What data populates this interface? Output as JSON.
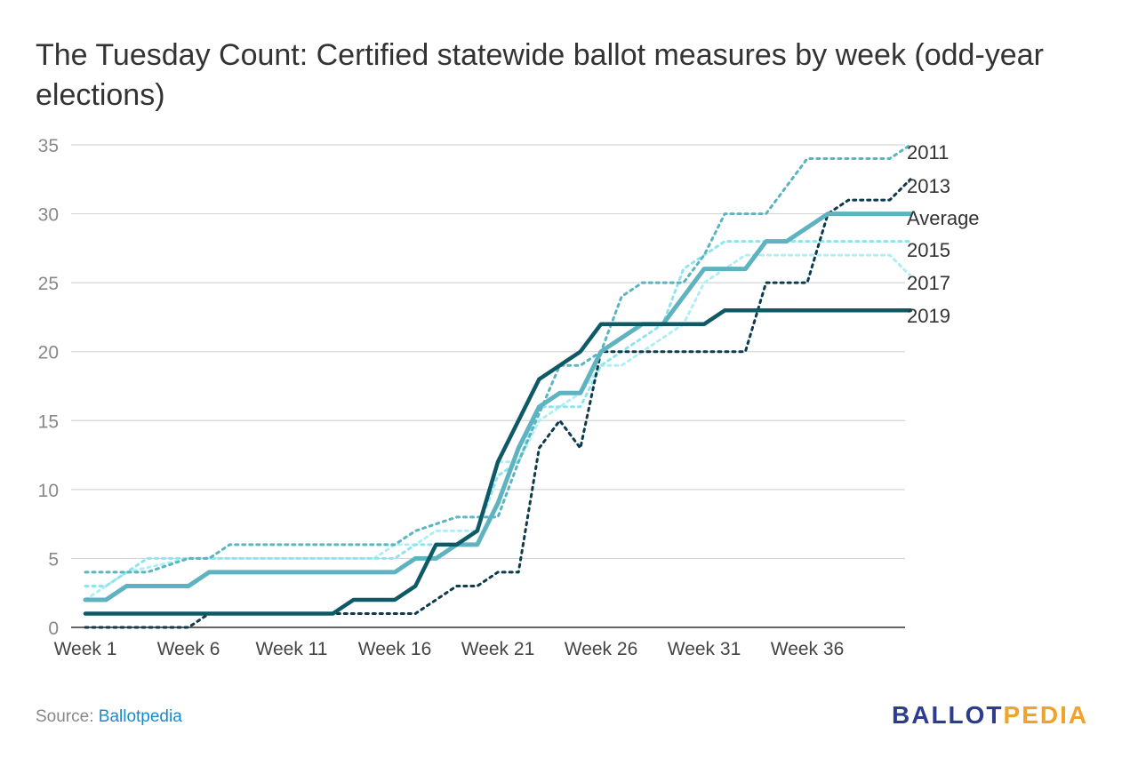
{
  "title": "The Tuesday Count: Certified statewide ballot measures by week (odd-year elections)",
  "source": {
    "label": "Source:",
    "link_text": "Ballotpedia"
  },
  "logo": {
    "part1": "BALLOT",
    "part2": "PEDIA",
    "color1": "#2d3c8c",
    "color2": "#f0a22a"
  },
  "chart_data": {
    "type": "line",
    "title": "The Tuesday Count: Certified statewide ballot measures by week (odd-year elections)",
    "xlabel": "",
    "ylabel": "",
    "ylim": [
      0,
      35
    ],
    "y_ticks": [
      0,
      5,
      10,
      15,
      20,
      25,
      30,
      35
    ],
    "x_tick_labels": [
      "Week 1",
      "Week 6",
      "Week 11",
      "Week 16",
      "Week 21",
      "Week 26",
      "Week 31",
      "Week 36"
    ],
    "x_tick_weeks": [
      1,
      6,
      11,
      16,
      21,
      26,
      31,
      36
    ],
    "x_range": [
      1,
      41
    ],
    "grid": true,
    "legend": "right, labels at line ends",
    "series": [
      {
        "name": "2011",
        "color": "#5bb5c0",
        "style": "dotted",
        "x": [
          1,
          4,
          6,
          7,
          8,
          12,
          16,
          17,
          19,
          21,
          22,
          24,
          25,
          26,
          27,
          28,
          29,
          30,
          31,
          32,
          33,
          34,
          35,
          36,
          37,
          38,
          39,
          40,
          41
        ],
        "values": [
          4,
          4,
          5,
          5,
          6,
          6,
          6,
          7,
          8,
          8,
          12,
          19,
          19,
          20,
          24,
          25,
          25,
          25,
          27,
          30,
          30,
          30,
          32,
          34,
          34,
          34,
          34,
          34,
          35
        ]
      },
      {
        "name": "2013",
        "color": "#0d3b4c",
        "style": "dotted",
        "x": [
          1,
          4,
          6,
          7,
          8,
          12,
          16,
          17,
          19,
          20,
          21,
          22,
          23,
          24,
          25,
          26,
          31,
          32,
          33,
          34,
          35,
          36,
          37,
          38,
          40,
          41
        ],
        "values": [
          0,
          0,
          0,
          1,
          1,
          1,
          1,
          1,
          3,
          3,
          4,
          4,
          13,
          15,
          13,
          20,
          20,
          20,
          20,
          25,
          25,
          25,
          30,
          31,
          31,
          32.5
        ]
      },
      {
        "name": "Average",
        "color": "#5fb3c1",
        "style": "solid-thick",
        "x": [
          1,
          2,
          3,
          4,
          5,
          6,
          7,
          8,
          12,
          16,
          17,
          18,
          19,
          20,
          21,
          22,
          23,
          24,
          25,
          26,
          27,
          28,
          29,
          30,
          31,
          32,
          33,
          34,
          35,
          36,
          37,
          38,
          39,
          40,
          41
        ],
        "values": [
          2,
          2,
          3,
          3,
          3,
          3,
          4,
          4,
          4,
          4,
          5,
          5,
          6,
          6,
          9,
          13,
          16,
          17,
          17,
          20,
          21,
          22,
          22,
          24,
          26,
          26,
          26,
          28,
          28,
          29,
          30,
          30,
          30,
          30,
          30
        ]
      },
      {
        "name": "2015",
        "color": "#8ee5ef",
        "style": "dotted",
        "x": [
          1,
          2,
          4,
          6,
          7,
          16,
          17,
          19,
          20,
          21,
          22,
          23,
          24,
          25,
          26,
          27,
          28,
          29,
          30,
          31,
          32,
          33,
          34,
          35,
          36,
          37,
          38,
          39,
          40,
          41
        ],
        "values": [
          3,
          3,
          5,
          5,
          5,
          5,
          6,
          6,
          7,
          11,
          12,
          16,
          16,
          16,
          19,
          20,
          21,
          22,
          26,
          27,
          28,
          28,
          28,
          28,
          28,
          28,
          28,
          28,
          28,
          28
        ]
      },
      {
        "name": "2017",
        "color": "#aeeef5",
        "style": "dotted",
        "x": [
          1,
          3,
          6,
          7,
          8,
          12,
          15,
          16,
          17,
          18,
          19,
          20,
          21,
          22,
          23,
          24,
          25,
          26,
          27,
          28,
          29,
          30,
          31,
          32,
          33,
          34,
          35,
          36,
          37,
          38,
          39,
          40,
          41
        ],
        "values": [
          2,
          4,
          5,
          5,
          5,
          5,
          5,
          6,
          6,
          7,
          7,
          7,
          12,
          12,
          15,
          16,
          17,
          19,
          19,
          20,
          21,
          22,
          25,
          26,
          27,
          27,
          27,
          27,
          27,
          27,
          27,
          27,
          25.5
        ]
      },
      {
        "name": "2019",
        "color": "#0d5a66",
        "style": "solid",
        "x": [
          1,
          10,
          13,
          14,
          15,
          16,
          17,
          18,
          19,
          20,
          21,
          22,
          23,
          24,
          25,
          26,
          27,
          28,
          29,
          30,
          31,
          32,
          41
        ],
        "values": [
          1,
          1,
          1,
          2,
          2,
          2,
          3,
          6,
          6,
          7,
          12,
          15,
          18,
          19,
          20,
          22,
          22,
          22,
          22,
          22,
          22,
          23,
          23
        ]
      }
    ]
  }
}
